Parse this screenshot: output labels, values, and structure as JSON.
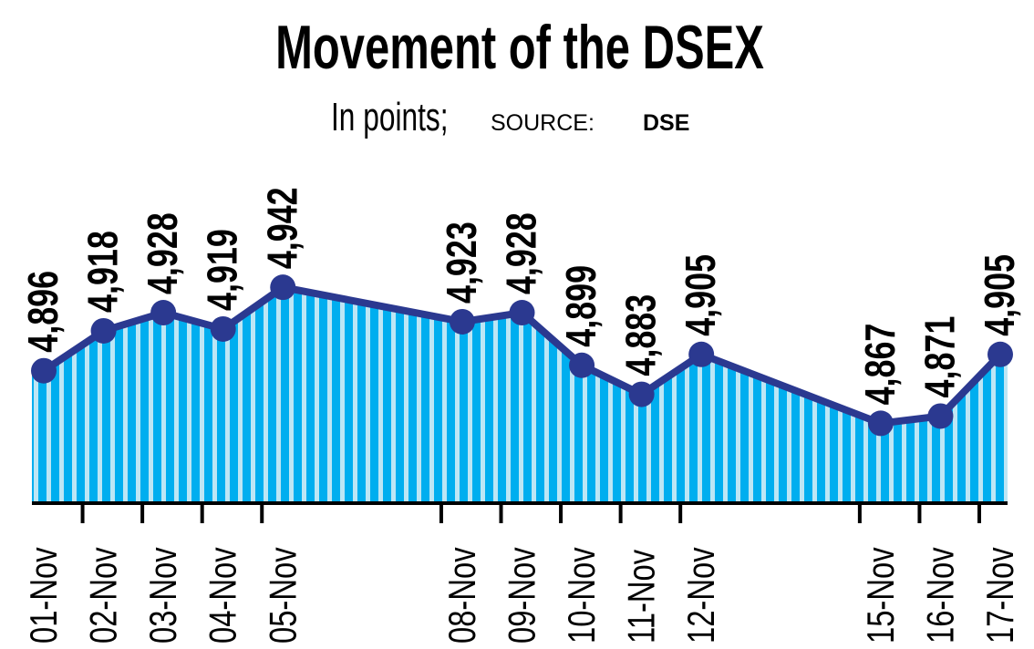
{
  "chart_data": {
    "type": "line",
    "title": "Movement of the DSEX",
    "subtitle": "In points;",
    "source_label": "SOURCE:",
    "source": "DSE",
    "categories": [
      "01-Nov",
      "02-Nov",
      "03-Nov",
      "04-Nov",
      "05-Nov",
      "08-Nov",
      "09-Nov",
      "10-Nov",
      "11-Nov",
      "12-Nov",
      "15-Nov",
      "16-Nov",
      "17-Nov"
    ],
    "values": [
      4896,
      4918,
      4928,
      4919,
      4942,
      4923,
      4928,
      4899,
      4883,
      4905,
      4867,
      4871,
      4905
    ],
    "value_labels": [
      "4,896",
      "4,918",
      "4,928",
      "4,919",
      "4,942",
      "4,923",
      "4,928",
      "4,899",
      "4,883",
      "4,905",
      "4,867",
      "4,871",
      "4,905"
    ],
    "color": "#2b3990",
    "area_color": "#00aeef",
    "area_light_color": "#bde6f5",
    "ylim": [
      4823,
      5025
    ]
  }
}
